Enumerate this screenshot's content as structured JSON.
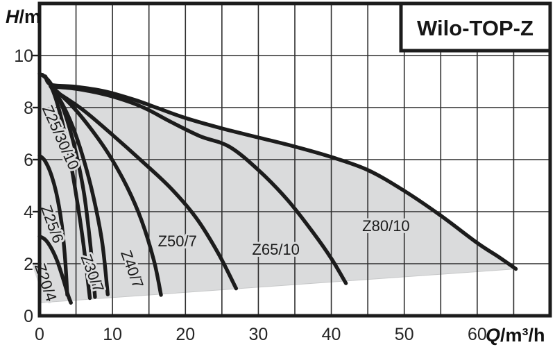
{
  "header": {
    "title": "Wilo-TOP-Z"
  },
  "axes": {
    "y": {
      "symbol": "H",
      "unit": "/m",
      "ticks": [
        0,
        2,
        4,
        6,
        8,
        10
      ],
      "range": [
        0,
        12
      ],
      "grid_step": 2
    },
    "x": {
      "symbol": "Q",
      "unit": "/m³/h",
      "ticks": [
        0,
        10,
        20,
        30,
        40,
        50,
        60
      ],
      "range": [
        0,
        70
      ],
      "grid_step": 5
    }
  },
  "colors": {
    "curve": "#1c1c1c",
    "grid": "#2e2e2e",
    "border": "#1c1c1c",
    "area_fill": "#dadbdc",
    "area_edge": "#c7c8c9",
    "background": "#ffffff",
    "text": "#1b1b1b"
  },
  "chart_data": {
    "type": "line",
    "title": "Wilo-TOP-Z",
    "xlabel": "Q/m³/h",
    "ylabel": "H/m",
    "xlim": [
      0,
      70
    ],
    "ylim": [
      0,
      12
    ],
    "grid": "on",
    "legend": "none",
    "series": [
      {
        "name": "Z20/4",
        "points": [
          [
            0,
            3.05
          ],
          [
            0.8,
            2.92
          ],
          [
            1.6,
            2.6
          ],
          [
            2.4,
            2.12
          ],
          [
            3.2,
            1.45
          ],
          [
            3.9,
            0.8
          ],
          [
            4.3,
            0.5
          ]
        ]
      },
      {
        "name": "Z25/6",
        "points": [
          [
            0,
            6.15
          ],
          [
            0.7,
            5.97
          ],
          [
            1.5,
            5.5
          ],
          [
            2.3,
            4.72
          ],
          [
            3.0,
            3.6
          ],
          [
            3.5,
            2.2
          ],
          [
            3.8,
            0.8
          ]
        ]
      },
      {
        "name": "Z25/30/10 (left)",
        "points": [
          [
            0,
            9.3
          ],
          [
            0.9,
            9.12
          ],
          [
            1.9,
            8.6
          ],
          [
            2.9,
            7.68
          ],
          [
            3.9,
            6.42
          ],
          [
            4.9,
            4.85
          ],
          [
            5.9,
            3.0
          ],
          [
            6.6,
            1.4
          ],
          [
            6.9,
            0.68
          ]
        ]
      },
      {
        "name": "Z25/30/10 (right)",
        "points": [
          [
            0.4,
            9.26
          ],
          [
            1.4,
            8.98
          ],
          [
            2.6,
            8.4
          ],
          [
            3.8,
            7.5
          ],
          [
            5.0,
            6.25
          ],
          [
            6.1,
            4.7
          ],
          [
            6.9,
            2.9
          ],
          [
            7.4,
            1.4
          ],
          [
            7.6,
            0.72
          ]
        ]
      },
      {
        "name": "Z30/7",
        "points": [
          [
            1.5,
            8.82
          ],
          [
            3.0,
            8.2
          ],
          [
            4.5,
            7.3
          ],
          [
            6.0,
            6.05
          ],
          [
            7.4,
            4.55
          ],
          [
            8.6,
            2.8
          ],
          [
            9.35,
            0.82
          ]
        ]
      },
      {
        "name": "Z40/7",
        "points": [
          [
            2.0,
            8.72
          ],
          [
            4.5,
            8.05
          ],
          [
            7.0,
            7.2
          ],
          [
            9.5,
            6.2
          ],
          [
            12.0,
            4.95
          ],
          [
            14.0,
            3.65
          ],
          [
            15.7,
            2.1
          ],
          [
            16.65,
            0.8
          ]
        ]
      },
      {
        "name": "Z50/7",
        "points": [
          [
            2.6,
            8.55
          ],
          [
            6.0,
            7.9
          ],
          [
            10.0,
            6.95
          ],
          [
            14.0,
            5.95
          ],
          [
            18.0,
            4.9
          ],
          [
            21.5,
            3.75
          ],
          [
            24.5,
            2.4
          ],
          [
            26.95,
            1.05
          ]
        ]
      },
      {
        "name": "Z65/10",
        "points": [
          [
            1.8,
            8.8
          ],
          [
            5.0,
            8.72
          ],
          [
            9.0,
            8.5
          ],
          [
            12.5,
            8.2
          ],
          [
            15.0,
            7.9
          ],
          [
            18.0,
            7.45
          ],
          [
            22.0,
            6.9
          ],
          [
            26.0,
            6.5
          ],
          [
            30.0,
            5.6
          ],
          [
            34.0,
            4.45
          ],
          [
            37.5,
            3.2
          ],
          [
            40.0,
            2.2
          ],
          [
            42.0,
            1.25
          ]
        ]
      },
      {
        "name": "Z80/10",
        "points": [
          [
            0.8,
            9.2
          ],
          [
            1.6,
            8.88
          ],
          [
            5.0,
            8.8
          ],
          [
            9.0,
            8.62
          ],
          [
            13.0,
            8.3
          ],
          [
            16.0,
            8.0
          ],
          [
            20.0,
            7.6
          ],
          [
            25.0,
            7.2
          ],
          [
            30.0,
            6.85
          ],
          [
            35.0,
            6.5
          ],
          [
            40.0,
            6.1
          ],
          [
            45.0,
            5.6
          ],
          [
            50.0,
            4.8
          ],
          [
            55.0,
            3.85
          ],
          [
            60.0,
            2.8
          ],
          [
            63.0,
            2.25
          ],
          [
            65.3,
            1.8
          ]
        ]
      }
    ],
    "operating_area": {
      "upper": [
        [
          0,
          9.3
        ],
        [
          0.8,
          9.2
        ],
        [
          1.6,
          8.88
        ],
        [
          5.0,
          8.8
        ],
        [
          9.0,
          8.62
        ],
        [
          13.0,
          8.3
        ],
        [
          16.0,
          8.0
        ],
        [
          20.0,
          7.6
        ],
        [
          25.0,
          7.2
        ],
        [
          30.0,
          6.85
        ],
        [
          35.0,
          6.5
        ],
        [
          40.0,
          6.1
        ],
        [
          45.0,
          5.6
        ],
        [
          50.0,
          4.8
        ],
        [
          55.0,
          3.85
        ],
        [
          60.0,
          2.8
        ],
        [
          63.0,
          2.25
        ],
        [
          65.3,
          1.8
        ]
      ],
      "lower": [
        [
          65.3,
          1.8
        ],
        [
          0,
          0.5
        ]
      ]
    },
    "labels": [
      {
        "text": "Z25/30/10",
        "x": 2.85,
        "y": 6.85,
        "rotation": 66
      },
      {
        "text": "Z25/6",
        "x": 1.7,
        "y": 3.52,
        "rotation": 70
      },
      {
        "text": "Z20/4",
        "x": 0.8,
        "y": 1.28,
        "rotation": 71
      },
      {
        "text": "Z30/7",
        "x": 7.2,
        "y": 1.63,
        "rotation": 69
      },
      {
        "text": "Z40/7",
        "x": 12.65,
        "y": 1.79,
        "rotation": 70
      },
      {
        "text": "Z50/7",
        "x": 18.9,
        "y": 2.85,
        "rotation": 0
      },
      {
        "text": "Z65/10",
        "x": 32.4,
        "y": 2.53,
        "rotation": 0
      },
      {
        "text": "Z80/10",
        "x": 47.5,
        "y": 3.44,
        "rotation": 0
      }
    ]
  }
}
